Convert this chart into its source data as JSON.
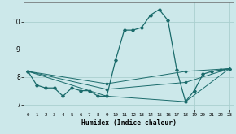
{
  "xlabel": "Humidex (Indice chaleur)",
  "background_color": "#cce8ea",
  "grid_color": "#aacfcf",
  "line_color": "#1a6b6b",
  "xlim": [
    -0.5,
    23.5
  ],
  "ylim": [
    6.8,
    10.7
  ],
  "yticks": [
    7,
    8,
    9,
    10
  ],
  "xticks": [
    0,
    1,
    2,
    3,
    4,
    5,
    6,
    7,
    8,
    9,
    10,
    11,
    12,
    13,
    14,
    15,
    16,
    17,
    18,
    19,
    20,
    21,
    22,
    23
  ],
  "lines": [
    {
      "x": [
        0,
        1,
        2,
        3,
        4,
        5,
        6,
        7,
        8,
        9,
        10,
        11,
        12,
        13,
        14,
        15,
        16,
        17,
        18,
        19,
        20,
        21,
        22,
        23
      ],
      "y": [
        8.2,
        7.7,
        7.6,
        7.6,
        7.3,
        7.6,
        7.5,
        7.5,
        7.3,
        7.3,
        8.6,
        9.7,
        9.7,
        9.8,
        10.25,
        10.45,
        10.05,
        8.25,
        7.1,
        7.5,
        8.1,
        8.2,
        8.25,
        8.3
      ]
    },
    {
      "x": [
        0,
        9,
        18,
        23
      ],
      "y": [
        8.2,
        7.3,
        7.1,
        8.3
      ]
    },
    {
      "x": [
        0,
        9,
        18,
        23
      ],
      "y": [
        8.2,
        7.55,
        7.8,
        8.3
      ]
    },
    {
      "x": [
        0,
        9,
        18,
        23
      ],
      "y": [
        8.2,
        7.75,
        8.2,
        8.3
      ]
    }
  ]
}
